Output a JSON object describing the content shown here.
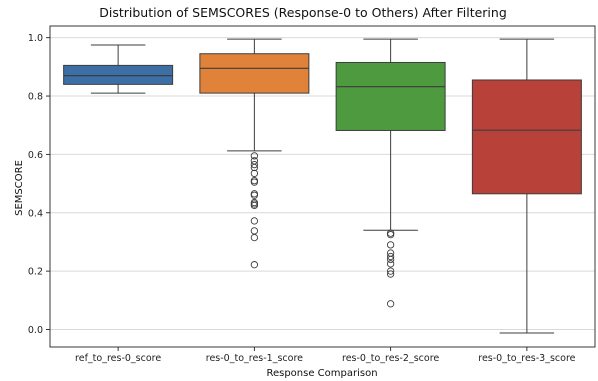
{
  "chart_data": {
    "type": "box",
    "title": "Distribution of SEMSCORES (Response-0 to Others) After Filtering",
    "xlabel": "Response Comparison",
    "ylabel": "SEMSCORE",
    "ylim": [
      -0.06,
      1.04
    ],
    "yticks": [
      "0.0",
      "0.2",
      "0.4",
      "0.6",
      "0.8",
      "1.0"
    ],
    "grid": "horizontal",
    "categories": [
      "ref_to_res-0_score",
      "res-0_to_res-1_score",
      "res-0_to_res-2_score",
      "res-0_to_res-3_score"
    ],
    "series": [
      {
        "category": "ref_to_res-0_score",
        "color": "#3b6fa6",
        "whisker_low": 0.81,
        "q1": 0.84,
        "median": 0.87,
        "q3": 0.905,
        "whisker_high": 0.975,
        "outliers": []
      },
      {
        "category": "res-0_to_res-1_score",
        "color": "#e0823a",
        "whisker_low": 0.612,
        "q1": 0.81,
        "median": 0.895,
        "q3": 0.945,
        "whisker_high": 0.995,
        "outliers": [
          0.595,
          0.578,
          0.565,
          0.555,
          0.535,
          0.51,
          0.505,
          0.465,
          0.46,
          0.435,
          0.43,
          0.425,
          0.372,
          0.338,
          0.315,
          0.222
        ]
      },
      {
        "category": "res-0_to_res-2_score",
        "color": "#4e9a3f",
        "whisker_low": 0.34,
        "q1": 0.682,
        "median": 0.832,
        "q3": 0.915,
        "whisker_high": 0.995,
        "outliers": [
          0.33,
          0.325,
          0.29,
          0.262,
          0.25,
          0.24,
          0.225,
          0.2,
          0.19,
          0.088
        ]
      },
      {
        "category": "res-0_to_res-3_score",
        "color": "#b8413a",
        "whisker_low": -0.012,
        "q1": 0.465,
        "median": 0.683,
        "q3": 0.855,
        "whisker_high": 0.995,
        "outliers": []
      }
    ]
  }
}
